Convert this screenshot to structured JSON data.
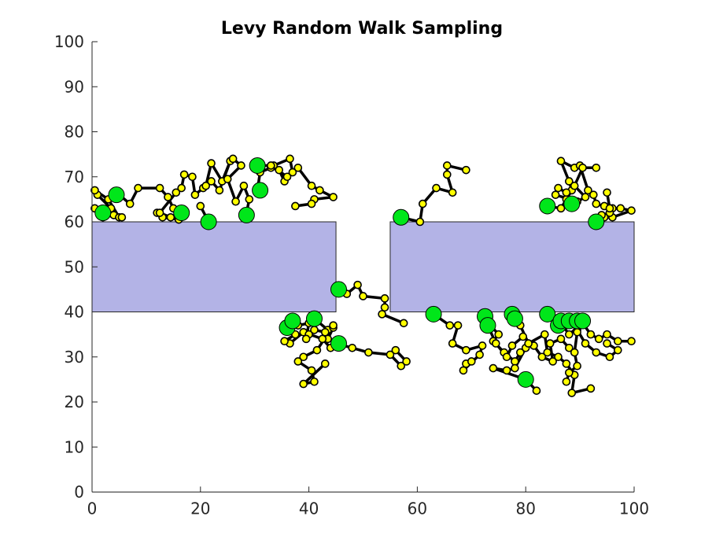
{
  "chart_data": {
    "type": "scatter",
    "title": "Levy Random Walk Sampling",
    "xlabel": "",
    "ylabel": "",
    "xlim": [
      0,
      100
    ],
    "ylim": [
      0,
      100
    ],
    "x_ticks": [
      0,
      20,
      40,
      60,
      80,
      100
    ],
    "y_ticks": [
      0,
      10,
      20,
      30,
      40,
      50,
      60,
      70,
      80,
      90,
      100
    ],
    "grid": false,
    "colors": {
      "obstacle_fill": "#b3b3e6",
      "walk_point": "#ffff00",
      "walk_line": "#000000",
      "sample_point": "#00e61a"
    },
    "obstacles": [
      {
        "x": [
          0,
          45
        ],
        "y": [
          40,
          60
        ]
      },
      {
        "x": [
          55,
          100
        ],
        "y": [
          40,
          60
        ]
      }
    ],
    "walk_paths": [
      [
        [
          0.5,
          63
        ],
        [
          2,
          61
        ],
        [
          4,
          61.5
        ],
        [
          3.5,
          63
        ],
        [
          1,
          66
        ],
        [
          0.5,
          67
        ],
        [
          3,
          65
        ],
        [
          5,
          61
        ],
        [
          5.5,
          61
        ]
      ],
      [
        [
          5,
          66
        ],
        [
          7,
          64
        ],
        [
          8.5,
          67.5
        ],
        [
          12.5,
          67.5
        ],
        [
          14,
          65.5
        ],
        [
          15,
          63
        ],
        [
          16.5,
          62
        ]
      ],
      [
        [
          12,
          62
        ],
        [
          13,
          61
        ],
        [
          16,
          60.5
        ],
        [
          14.5,
          61
        ],
        [
          12.5,
          62
        ],
        [
          15.5,
          66.5
        ],
        [
          16.5,
          67.5
        ],
        [
          17,
          70.5
        ],
        [
          18.5,
          70
        ],
        [
          19,
          66
        ],
        [
          20.5,
          67.5
        ],
        [
          22,
          69
        ],
        [
          23.5,
          67
        ],
        [
          25.5,
          73.5
        ],
        [
          24,
          69
        ],
        [
          22,
          73
        ],
        [
          21,
          68
        ]
      ],
      [
        [
          20,
          63.5
        ],
        [
          21.5,
          60
        ]
      ],
      [
        [
          28.5,
          62
        ],
        [
          29,
          65
        ],
        [
          28,
          68
        ],
        [
          26.5,
          64.5
        ],
        [
          25,
          69.5
        ],
        [
          27.5,
          72.5
        ],
        [
          26,
          74
        ]
      ],
      [
        [
          30.5,
          72.5
        ],
        [
          33.5,
          72.5
        ],
        [
          36.5,
          74
        ],
        [
          37,
          71
        ],
        [
          35.5,
          69
        ],
        [
          34.5,
          71.5
        ],
        [
          33,
          72
        ],
        [
          31,
          71
        ],
        [
          30.5,
          67
        ]
      ],
      [
        [
          33,
          72.5
        ],
        [
          36,
          70
        ],
        [
          38,
          72
        ],
        [
          40.5,
          68
        ],
        [
          42,
          67
        ],
        [
          44.5,
          65.5
        ],
        [
          41,
          65
        ],
        [
          40.5,
          64
        ],
        [
          37.5,
          63.5
        ]
      ],
      [
        [
          45.5,
          45
        ],
        [
          47,
          44
        ],
        [
          49,
          46
        ],
        [
          50,
          43.5
        ],
        [
          54,
          43
        ],
        [
          54,
          41
        ],
        [
          53.5,
          39.5
        ],
        [
          57.5,
          37.5
        ]
      ],
      [
        [
          41,
          38.5
        ],
        [
          43.5,
          36
        ],
        [
          44.5,
          36.5
        ],
        [
          43.5,
          34
        ],
        [
          45,
          33
        ],
        [
          48,
          32
        ],
        [
          51,
          31
        ],
        [
          55,
          30.5
        ],
        [
          57,
          28
        ],
        [
          58,
          29
        ],
        [
          56,
          31.5
        ]
      ],
      [
        [
          45.5,
          33
        ],
        [
          44,
          32
        ],
        [
          42.5,
          34
        ],
        [
          39,
          35.5
        ],
        [
          36.5,
          33
        ],
        [
          35.5,
          33.5
        ],
        [
          37.5,
          35
        ],
        [
          40,
          35
        ],
        [
          41,
          36
        ],
        [
          43,
          35.5
        ],
        [
          44.5,
          37
        ],
        [
          41.5,
          31.5
        ],
        [
          39,
          30
        ],
        [
          38,
          29
        ],
        [
          40.5,
          27
        ],
        [
          41,
          24.5
        ],
        [
          39,
          24
        ],
        [
          43,
          28.5
        ]
      ],
      [
        [
          35.5,
          36.5
        ],
        [
          38,
          37
        ],
        [
          40,
          37.5
        ],
        [
          39.5,
          34
        ]
      ],
      [
        [
          57,
          61
        ],
        [
          60.5,
          60
        ],
        [
          61,
          64
        ],
        [
          63.5,
          67.5
        ],
        [
          66.5,
          66.5
        ],
        [
          65.5,
          70.5
        ],
        [
          65.5,
          72.5
        ],
        [
          69,
          71.5
        ]
      ],
      [
        [
          63,
          39.5
        ],
        [
          66,
          37
        ],
        [
          67.5,
          37
        ],
        [
          66.5,
          33
        ],
        [
          69,
          31.5
        ],
        [
          72,
          32.5
        ],
        [
          71.5,
          30.5
        ],
        [
          68.5,
          27
        ],
        [
          69,
          28.5
        ],
        [
          70,
          29
        ]
      ],
      [
        [
          72.5,
          39
        ],
        [
          73.5,
          37
        ],
        [
          75,
          35
        ],
        [
          74,
          33.5
        ],
        [
          76,
          31
        ],
        [
          78,
          29
        ],
        [
          79,
          31
        ],
        [
          80,
          32
        ],
        [
          78,
          27.5
        ],
        [
          76.5,
          27
        ],
        [
          74,
          27.5
        ],
        [
          80,
          25
        ],
        [
          82,
          22.5
        ]
      ],
      [
        [
          73,
          37
        ],
        [
          74.5,
          33
        ],
        [
          76.5,
          30
        ],
        [
          77.5,
          32.5
        ],
        [
          79.5,
          34.5
        ],
        [
          81.5,
          32.5
        ],
        [
          83,
          30
        ],
        [
          85,
          29
        ],
        [
          84.5,
          33
        ],
        [
          86.5,
          34
        ],
        [
          88,
          32
        ]
      ],
      [
        [
          77.5,
          39.5
        ],
        [
          79,
          37
        ],
        [
          80.5,
          33
        ],
        [
          83.5,
          35
        ],
        [
          84,
          31
        ],
        [
          86,
          30
        ],
        [
          87.5,
          28.5
        ],
        [
          89,
          26
        ],
        [
          88.5,
          22
        ],
        [
          92,
          23
        ]
      ],
      [
        [
          84,
          39.5
        ],
        [
          86.5,
          37.5
        ],
        [
          88,
          35
        ],
        [
          90.5,
          37.5
        ],
        [
          92,
          35
        ],
        [
          93.5,
          34
        ],
        [
          95,
          35
        ],
        [
          97,
          33.5
        ],
        [
          99.5,
          33.5
        ]
      ],
      [
        [
          88,
          38
        ],
        [
          89.5,
          36
        ],
        [
          91,
          33
        ],
        [
          93,
          31
        ],
        [
          95.5,
          30
        ],
        [
          97,
          31.5
        ],
        [
          95,
          33
        ]
      ],
      [
        [
          90.5,
          38
        ],
        [
          89.5,
          35.5
        ],
        [
          89,
          31
        ],
        [
          89.5,
          28
        ],
        [
          88,
          26.5
        ],
        [
          87.5,
          24.5
        ]
      ],
      [
        [
          84,
          63.5
        ],
        [
          86.5,
          63
        ],
        [
          87.5,
          65
        ],
        [
          88.5,
          67
        ],
        [
          88,
          69
        ],
        [
          86.5,
          73.5
        ],
        [
          89,
          72
        ],
        [
          90,
          72.5
        ],
        [
          91.5,
          67
        ],
        [
          92.5,
          66
        ],
        [
          93,
          64
        ],
        [
          94.5,
          63.5
        ],
        [
          96,
          63
        ],
        [
          97.5,
          63
        ],
        [
          99.5,
          62.5
        ],
        [
          96,
          61
        ],
        [
          94.5,
          61
        ]
      ],
      [
        [
          88.5,
          64
        ],
        [
          87.5,
          66.5
        ],
        [
          86,
          67.5
        ],
        [
          85.5,
          66
        ],
        [
          89.5,
          64.5
        ],
        [
          91,
          65.5
        ],
        [
          89,
          68
        ],
        [
          90.5,
          72
        ],
        [
          93,
          72
        ]
      ],
      [
        [
          93,
          60
        ],
        [
          94,
          61.5
        ],
        [
          95.5,
          62
        ],
        [
          95.5,
          63
        ],
        [
          95,
          66.5
        ]
      ]
    ],
    "samples": [
      [
        2,
        62
      ],
      [
        4.5,
        66
      ],
      [
        16.5,
        62
      ],
      [
        21.5,
        60
      ],
      [
        28.5,
        61.5
      ],
      [
        30.5,
        72.5
      ],
      [
        31,
        67
      ],
      [
        45.5,
        45
      ],
      [
        36,
        36.5
      ],
      [
        37,
        38
      ],
      [
        41,
        38.5
      ],
      [
        45.5,
        33
      ],
      [
        57,
        61
      ],
      [
        63,
        39.5
      ],
      [
        72.5,
        39
      ],
      [
        73,
        37
      ],
      [
        77.5,
        39.5
      ],
      [
        78,
        38.5
      ],
      [
        80,
        25
      ],
      [
        84,
        39.5
      ],
      [
        84,
        63.5
      ],
      [
        86,
        37
      ],
      [
        86.5,
        38
      ],
      [
        88,
        38
      ],
      [
        88.5,
        64
      ],
      [
        89.5,
        38
      ],
      [
        90.5,
        38
      ],
      [
        93,
        60
      ]
    ]
  }
}
